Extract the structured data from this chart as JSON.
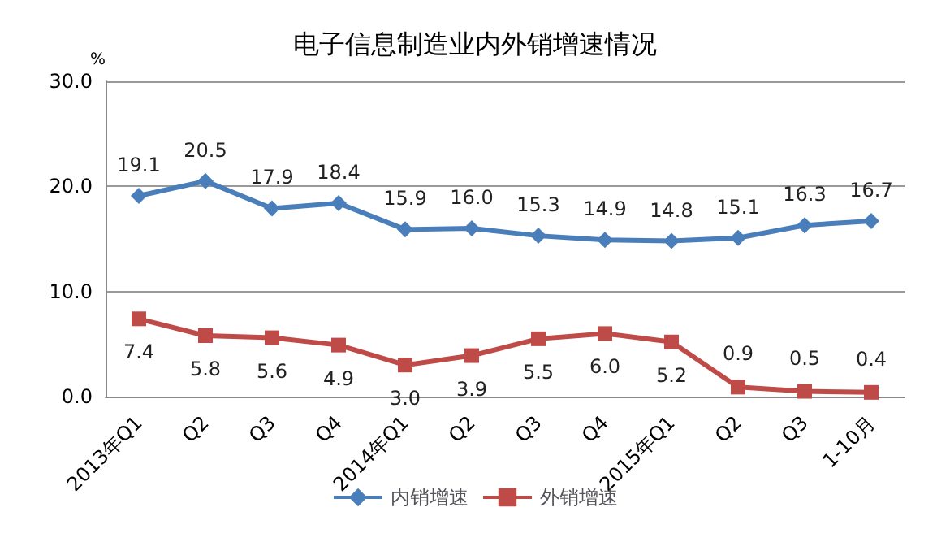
{
  "chart_data": {
    "type": "line",
    "title": "电子信息制造业内外销增速情况",
    "ylabel": "%",
    "categories": [
      "2013年Q1",
      "Q2",
      "Q3",
      "Q4",
      "2014年Q1",
      "Q2",
      "Q3",
      "Q4",
      "2015年Q1",
      "Q2",
      "Q3",
      "1-10月"
    ],
    "series": [
      {
        "name": "内销增速",
        "color": "#4a7ebb",
        "marker": "diamond",
        "values": [
          19.1,
          20.5,
          17.9,
          18.4,
          15.9,
          16.0,
          15.3,
          14.9,
          14.8,
          15.1,
          16.3,
          16.7
        ],
        "value_labels": [
          "19.1",
          "20.5",
          "17.9",
          "18.4",
          "15.9",
          "16.0",
          "15.3",
          "14.9",
          "14.8",
          "15.1",
          "16.3",
          "16.7"
        ]
      },
      {
        "name": "外销增速",
        "color": "#be4b48",
        "marker": "square",
        "values": [
          7.4,
          5.8,
          5.6,
          4.9,
          3.0,
          3.9,
          5.5,
          6.0,
          5.2,
          0.9,
          0.5,
          0.4
        ],
        "value_labels": [
          "7.4",
          "5.8",
          "5.6",
          "4.9",
          "3.0",
          "3.9",
          "5.5",
          "6.0",
          "5.2",
          "0.9",
          "0.5",
          "0.4"
        ]
      }
    ],
    "ylim": [
      0,
      30
    ],
    "yticks": [
      {
        "value": 0,
        "label": "0.0"
      },
      {
        "value": 10,
        "label": "10.0"
      },
      {
        "value": 20,
        "label": "20.0"
      },
      {
        "value": 30,
        "label": "30.0"
      }
    ],
    "grid": "y",
    "legend": "bottom",
    "line_style": "solid"
  }
}
